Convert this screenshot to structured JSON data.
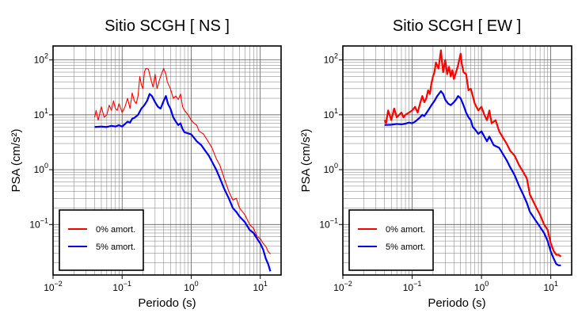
{
  "chart_data": [
    {
      "type": "line",
      "title": "Sitio SCGH [ NS ]",
      "xlabel": "Periodo (s)",
      "ylabel": "PSA (cm/s²)",
      "xscale": "log",
      "yscale": "log",
      "xlim": [
        0.01,
        20
      ],
      "ylim": [
        0.012,
        180
      ],
      "grid": true,
      "legend_position": "bottom-left",
      "x_ticks": [
        {
          "value": 0.01,
          "base": "10",
          "exp": "−2"
        },
        {
          "value": 0.1,
          "base": "10",
          "exp": "−1"
        },
        {
          "value": 1,
          "base": "10",
          "exp": "0"
        },
        {
          "value": 10,
          "base": "10",
          "exp": "1"
        }
      ],
      "y_ticks": [
        {
          "value": 0.1,
          "base": "10",
          "exp": "−1"
        },
        {
          "value": 1,
          "base": "10",
          "exp": "0"
        },
        {
          "value": 10,
          "base": "10",
          "exp": "1"
        },
        {
          "value": 100,
          "base": "10",
          "exp": "2"
        }
      ],
      "series": [
        {
          "name": "0% amort.",
          "color": "#ff0000",
          "points": [
            [
              0.04,
              9
            ],
            [
              0.042,
              12
            ],
            [
              0.045,
              8
            ],
            [
              0.05,
              14
            ],
            [
              0.055,
              9
            ],
            [
              0.06,
              10
            ],
            [
              0.065,
              15
            ],
            [
              0.07,
              12
            ],
            [
              0.075,
              18
            ],
            [
              0.08,
              13
            ],
            [
              0.085,
              12
            ],
            [
              0.09,
              16
            ],
            [
              0.1,
              11
            ],
            [
              0.11,
              14
            ],
            [
              0.12,
              20
            ],
            [
              0.13,
              13
            ],
            [
              0.14,
              25
            ],
            [
              0.15,
              18
            ],
            [
              0.16,
              16
            ],
            [
              0.17,
              22
            ],
            [
              0.18,
              50
            ],
            [
              0.19,
              35
            ],
            [
              0.2,
              30
            ],
            [
              0.21,
              60
            ],
            [
              0.22,
              70
            ],
            [
              0.24,
              68
            ],
            [
              0.26,
              45
            ],
            [
              0.28,
              32
            ],
            [
              0.3,
              55
            ],
            [
              0.32,
              30
            ],
            [
              0.35,
              45
            ],
            [
              0.38,
              60
            ],
            [
              0.4,
              70
            ],
            [
              0.43,
              55
            ],
            [
              0.45,
              40
            ],
            [
              0.5,
              30
            ],
            [
              0.55,
              20
            ],
            [
              0.6,
              22
            ],
            [
              0.65,
              19
            ],
            [
              0.7,
              24
            ],
            [
              0.75,
              14
            ],
            [
              0.8,
              12
            ],
            [
              0.9,
              10
            ],
            [
              1.0,
              8
            ],
            [
              1.1,
              7
            ],
            [
              1.2,
              6.5
            ],
            [
              1.3,
              5
            ],
            [
              1.5,
              4.5
            ],
            [
              1.7,
              3.5
            ],
            [
              2.0,
              2.5
            ],
            [
              2.3,
              1.6
            ],
            [
              2.6,
              1.2
            ],
            [
              3.0,
              0.7
            ],
            [
              3.5,
              0.4
            ],
            [
              4.0,
              0.28
            ],
            [
              4.5,
              0.3
            ],
            [
              5.0,
              0.2
            ],
            [
              6.0,
              0.15
            ],
            [
              7.0,
              0.1
            ],
            [
              8.0,
              0.085
            ],
            [
              9.0,
              0.06
            ],
            [
              10.0,
              0.055
            ],
            [
              11.0,
              0.045
            ],
            [
              12.0,
              0.04
            ],
            [
              13.0,
              0.032
            ],
            [
              14.0,
              0.029
            ]
          ]
        },
        {
          "name": "5% amort.",
          "color": "#0000ee",
          "points": [
            [
              0.04,
              6
            ],
            [
              0.05,
              6.1
            ],
            [
              0.06,
              6
            ],
            [
              0.07,
              6.3
            ],
            [
              0.08,
              6.1
            ],
            [
              0.09,
              6.5
            ],
            [
              0.1,
              6.1
            ],
            [
              0.11,
              6.8
            ],
            [
              0.12,
              7.5
            ],
            [
              0.13,
              7.2
            ],
            [
              0.14,
              8.5
            ],
            [
              0.15,
              8.8
            ],
            [
              0.17,
              10
            ],
            [
              0.19,
              13
            ],
            [
              0.21,
              15
            ],
            [
              0.23,
              18
            ],
            [
              0.25,
              24
            ],
            [
              0.27,
              22
            ],
            [
              0.3,
              17
            ],
            [
              0.33,
              14
            ],
            [
              0.36,
              13
            ],
            [
              0.4,
              18
            ],
            [
              0.43,
              22
            ],
            [
              0.46,
              16
            ],
            [
              0.5,
              13
            ],
            [
              0.55,
              9
            ],
            [
              0.6,
              7.5
            ],
            [
              0.65,
              6.5
            ],
            [
              0.7,
              7
            ],
            [
              0.75,
              5.5
            ],
            [
              0.8,
              4.8
            ],
            [
              0.9,
              4.6
            ],
            [
              1.0,
              4.4
            ],
            [
              1.1,
              3.8
            ],
            [
              1.2,
              3.3
            ],
            [
              1.4,
              2.8
            ],
            [
              1.6,
              2.2
            ],
            [
              1.8,
              1.8
            ],
            [
              2.0,
              1.4
            ],
            [
              2.3,
              1.0
            ],
            [
              2.6,
              0.7
            ],
            [
              3.0,
              0.45
            ],
            [
              3.5,
              0.3
            ],
            [
              4.0,
              0.2
            ],
            [
              4.5,
              0.17
            ],
            [
              5.0,
              0.14
            ],
            [
              6.0,
              0.11
            ],
            [
              7.0,
              0.08
            ],
            [
              8.0,
              0.07
            ],
            [
              9.0,
              0.055
            ],
            [
              10.0,
              0.045
            ],
            [
              11.0,
              0.035
            ],
            [
              12.0,
              0.024
            ],
            [
              13.0,
              0.019
            ],
            [
              14.0,
              0.014
            ]
          ]
        }
      ]
    },
    {
      "type": "line",
      "title": "Sitio SCGH [ EW ]",
      "xlabel": "Periodo (s)",
      "ylabel": "PSA (cm/s²)",
      "xscale": "log",
      "yscale": "log",
      "xlim": [
        0.01,
        20
      ],
      "ylim": [
        0.012,
        180
      ],
      "grid": true,
      "legend_position": "bottom-left",
      "x_ticks": [
        {
          "value": 0.01,
          "base": "10",
          "exp": "−2"
        },
        {
          "value": 0.1,
          "base": "10",
          "exp": "−1"
        },
        {
          "value": 1,
          "base": "10",
          "exp": "0"
        },
        {
          "value": 10,
          "base": "10",
          "exp": "1"
        }
      ],
      "y_ticks": [
        {
          "value": 0.1,
          "base": "10",
          "exp": "−1"
        },
        {
          "value": 1,
          "base": "10",
          "exp": "0"
        },
        {
          "value": 10,
          "base": "10",
          "exp": "1"
        },
        {
          "value": 100,
          "base": "10",
          "exp": "2"
        }
      ],
      "series": [
        {
          "name": "0% amort.",
          "color": "#ff0000",
          "points": [
            [
              0.04,
              8
            ],
            [
              0.042,
              7
            ],
            [
              0.045,
              12
            ],
            [
              0.05,
              8
            ],
            [
              0.055,
              13
            ],
            [
              0.06,
              9
            ],
            [
              0.065,
              10
            ],
            [
              0.07,
              11
            ],
            [
              0.075,
              9
            ],
            [
              0.08,
              10
            ],
            [
              0.09,
              11
            ],
            [
              0.1,
              12
            ],
            [
              0.11,
              14
            ],
            [
              0.12,
              11
            ],
            [
              0.13,
              16
            ],
            [
              0.14,
              22
            ],
            [
              0.15,
              17
            ],
            [
              0.16,
              20
            ],
            [
              0.17,
              28
            ],
            [
              0.18,
              24
            ],
            [
              0.19,
              38
            ],
            [
              0.2,
              50
            ],
            [
              0.21,
              60
            ],
            [
              0.22,
              90
            ],
            [
              0.24,
              70
            ],
            [
              0.26,
              150
            ],
            [
              0.27,
              90
            ],
            [
              0.28,
              60
            ],
            [
              0.3,
              100
            ],
            [
              0.32,
              55
            ],
            [
              0.34,
              75
            ],
            [
              0.36,
              50
            ],
            [
              0.38,
              65
            ],
            [
              0.4,
              45
            ],
            [
              0.43,
              60
            ],
            [
              0.46,
              80
            ],
            [
              0.5,
              130
            ],
            [
              0.52,
              85
            ],
            [
              0.55,
              60
            ],
            [
              0.6,
              55
            ],
            [
              0.65,
              28
            ],
            [
              0.7,
              30
            ],
            [
              0.75,
              22
            ],
            [
              0.8,
              16
            ],
            [
              0.9,
              12
            ],
            [
              1.0,
              14
            ],
            [
              1.1,
              10
            ],
            [
              1.2,
              8
            ],
            [
              1.3,
              12
            ],
            [
              1.4,
              7
            ],
            [
              1.6,
              8
            ],
            [
              1.8,
              5
            ],
            [
              2.0,
              4
            ],
            [
              2.3,
              3
            ],
            [
              2.6,
              2.2
            ],
            [
              3.0,
              1.8
            ],
            [
              3.5,
              1.2
            ],
            [
              4.0,
              0.9
            ],
            [
              4.5,
              0.7
            ],
            [
              5.0,
              0.35
            ],
            [
              6.0,
              0.22
            ],
            [
              7.0,
              0.15
            ],
            [
              8.0,
              0.1
            ],
            [
              9.0,
              0.08
            ],
            [
              10.0,
              0.045
            ],
            [
              11.0,
              0.033
            ],
            [
              12.0,
              0.028
            ],
            [
              13.0,
              0.028
            ],
            [
              14.0,
              0.026
            ]
          ]
        },
        {
          "name": "5% amort.",
          "color": "#0000ee",
          "points": [
            [
              0.04,
              6.5
            ],
            [
              0.05,
              6.6
            ],
            [
              0.06,
              6.8
            ],
            [
              0.07,
              6.7
            ],
            [
              0.08,
              6.9
            ],
            [
              0.09,
              7.2
            ],
            [
              0.1,
              7
            ],
            [
              0.11,
              7.5
            ],
            [
              0.12,
              8.2
            ],
            [
              0.13,
              9
            ],
            [
              0.14,
              10
            ],
            [
              0.15,
              9.5
            ],
            [
              0.17,
              12
            ],
            [
              0.19,
              15
            ],
            [
              0.21,
              18
            ],
            [
              0.23,
              22
            ],
            [
              0.26,
              27
            ],
            [
              0.28,
              24
            ],
            [
              0.3,
              19
            ],
            [
              0.33,
              16
            ],
            [
              0.36,
              15
            ],
            [
              0.4,
              17
            ],
            [
              0.43,
              19
            ],
            [
              0.46,
              22
            ],
            [
              0.5,
              20
            ],
            [
              0.55,
              15
            ],
            [
              0.6,
              11
            ],
            [
              0.65,
              9
            ],
            [
              0.7,
              8
            ],
            [
              0.75,
              6
            ],
            [
              0.8,
              5.5
            ],
            [
              0.9,
              4.5
            ],
            [
              1.0,
              5
            ],
            [
              1.1,
              4
            ],
            [
              1.2,
              3.3
            ],
            [
              1.3,
              4
            ],
            [
              1.5,
              2.8
            ],
            [
              1.8,
              2.5
            ],
            [
              2.0,
              2
            ],
            [
              2.3,
              1.5
            ],
            [
              2.6,
              1.1
            ],
            [
              3.0,
              0.8
            ],
            [
              3.5,
              0.5
            ],
            [
              4.0,
              0.35
            ],
            [
              4.5,
              0.25
            ],
            [
              5.0,
              0.17
            ],
            [
              6.0,
              0.12
            ],
            [
              7.0,
              0.09
            ],
            [
              8.0,
              0.07
            ],
            [
              9.0,
              0.05
            ],
            [
              10.0,
              0.032
            ],
            [
              11.0,
              0.024
            ],
            [
              12.0,
              0.019
            ],
            [
              13.0,
              0.018
            ],
            [
              14.0,
              0.018
            ]
          ]
        }
      ]
    }
  ]
}
